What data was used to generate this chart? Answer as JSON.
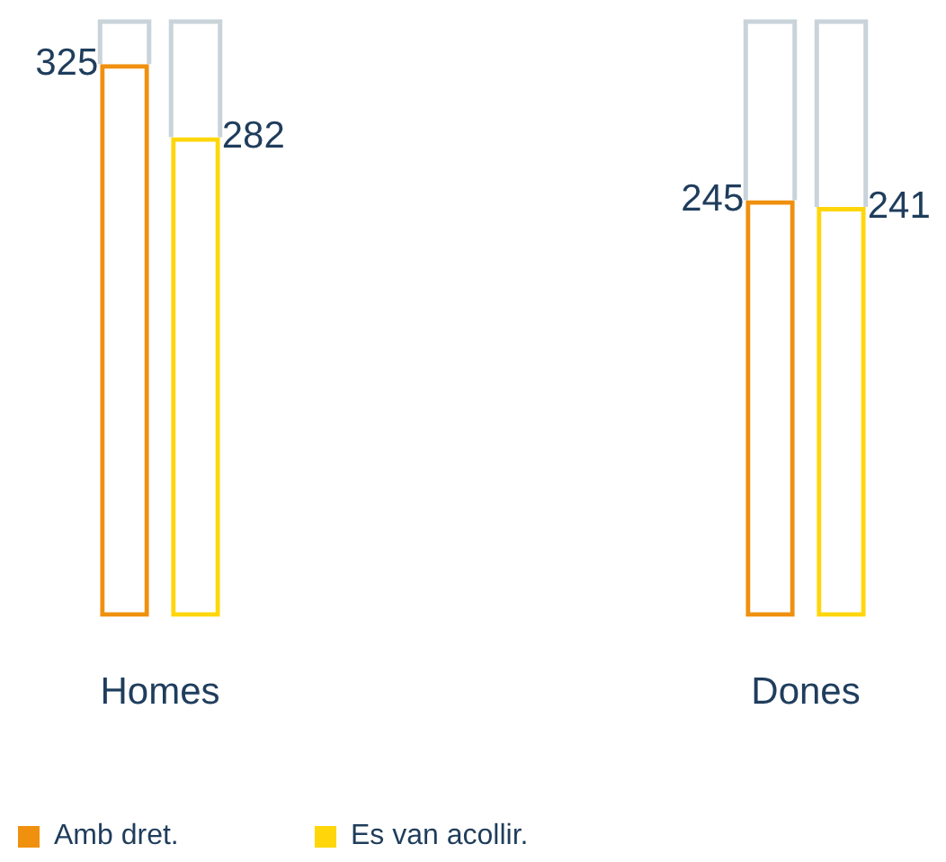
{
  "chart_data": {
    "type": "bar",
    "categories": [
      "Homes",
      "Dones"
    ],
    "series": [
      {
        "name": "Amb dret.",
        "color": "#f0900f",
        "values": [
          325,
          245
        ]
      },
      {
        "name": "Es van acollir.",
        "color": "#ffd60a",
        "values": [
          282,
          241
        ]
      }
    ],
    "tick_labels": "x",
    "data_labels": true,
    "legend": "bottom left"
  }
}
